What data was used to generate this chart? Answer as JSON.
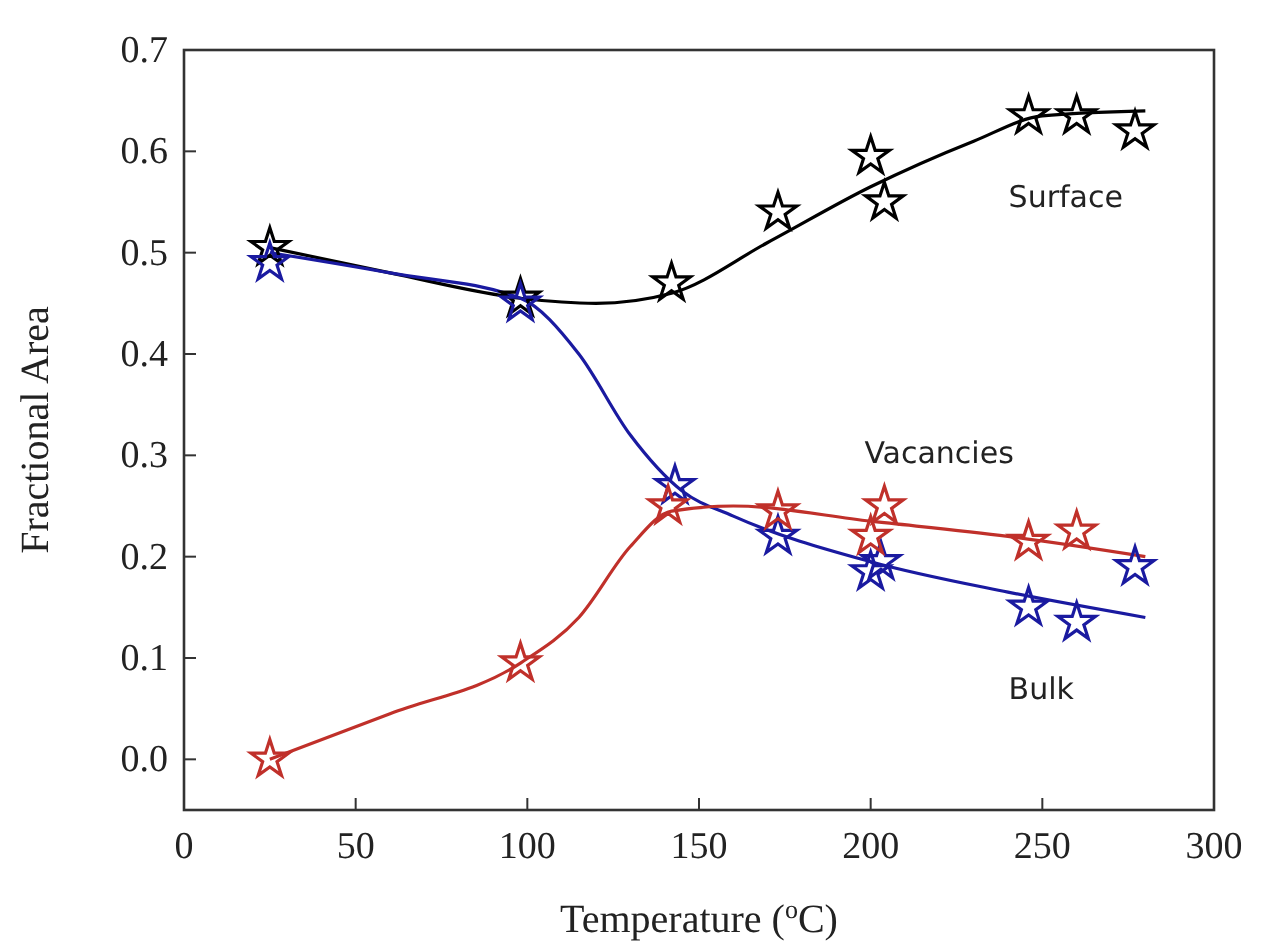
{
  "chart_data": {
    "type": "scatter",
    "xlabel": "Temperature ($^{o}$C)",
    "ylabel": "Fractional Area",
    "xlim": [
      0,
      300
    ],
    "xticks": [
      0,
      50,
      100,
      150,
      200,
      250,
      300
    ],
    "ylim": [
      -0.05,
      0.7
    ],
    "yticks": [
      {
        "value": 0,
        "label": "0.0"
      },
      {
        "value": 0.1,
        "label": "0.1"
      },
      {
        "value": 0.2,
        "label": "0.2"
      },
      {
        "value": 0.3,
        "label": "0.3"
      },
      {
        "value": 0.4,
        "label": "0.4"
      },
      {
        "value": 0.5,
        "label": "0.5"
      },
      {
        "value": 0.6,
        "label": "0.6"
      },
      {
        "value": 0.7,
        "label": "0.7"
      }
    ],
    "grid": false,
    "series": [
      {
        "type": "line",
        "marker": "none",
        "color": "#000000",
        "x": [
          25,
          60,
          98,
          120,
          142,
          170,
          200,
          230,
          250,
          280
        ],
        "values": [
          0.505,
          0.48,
          0.455,
          0.45,
          0.46,
          0.51,
          0.565,
          0.61,
          0.635,
          0.64
        ]
      },
      {
        "type": "line",
        "marker": "none",
        "color": "#1a1aa0",
        "x": [
          25,
          60,
          98,
          115,
          130,
          145,
          160,
          200,
          240,
          280
        ],
        "values": [
          0.5,
          0.48,
          0.455,
          0.4,
          0.32,
          0.265,
          0.24,
          0.195,
          0.165,
          0.14
        ]
      },
      {
        "type": "line",
        "marker": "none",
        "color": "#c0302a",
        "x": [
          25,
          60,
          98,
          115,
          130,
          142,
          160,
          200,
          240,
          280
        ],
        "values": [
          0,
          0.045,
          0.095,
          0.14,
          0.21,
          0.245,
          0.25,
          0.235,
          0.22,
          0.2
        ]
      },
      {
        "name": "Surface",
        "marker": "star",
        "color": "#000000",
        "x": [
          25,
          98,
          142,
          173,
          200,
          204,
          246,
          260,
          277
        ],
        "values": [
          0.505,
          0.455,
          0.47,
          0.54,
          0.595,
          0.55,
          0.635,
          0.635,
          0.62
        ]
      },
      {
        "name": "Bulk",
        "marker": "star",
        "color": "#1a1aa0",
        "x": [
          25,
          98,
          143,
          173,
          200,
          203,
          246,
          260,
          277
        ],
        "values": [
          0.49,
          0.45,
          0.27,
          0.22,
          0.185,
          0.195,
          0.15,
          0.135,
          0.19
        ]
      },
      {
        "name": "Vacancies",
        "marker": "star",
        "color": "#c0302a",
        "x": [
          25,
          98,
          141,
          173,
          200,
          204,
          246,
          260
        ],
        "values": [
          0,
          0.095,
          0.25,
          0.245,
          0.22,
          0.25,
          0.215,
          0.225
        ]
      }
    ]
  }
}
